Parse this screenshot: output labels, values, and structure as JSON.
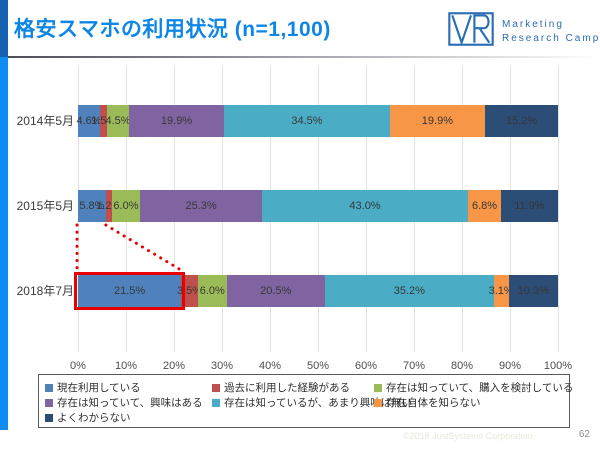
{
  "slide": {
    "title": "格安スマホの利用状況 (n=1,100)",
    "logo": {
      "brand_line1": "Marketing",
      "brand_line2": "Research Camp"
    },
    "footer": {
      "copyright": "©2018 JustSystems Corporation",
      "page_number": "62"
    }
  },
  "colors": {
    "title_accent": "#0e86e6",
    "edge_band_top": "#1563b0",
    "edge_band_bottom": "#0d8df2",
    "logo_blue": "#2a6db5",
    "highlight_red": "#e60000",
    "gridline": "#e2e2e2"
  },
  "chart_data": {
    "type": "bar",
    "subtype": "horizontal-stacked",
    "unit": "%",
    "categories": [
      "2014年5月",
      "2015年5月",
      "2018年7月"
    ],
    "series": [
      {
        "name": "現在利用している",
        "color": "#4f81bd",
        "values": [
          4.6,
          5.8,
          21.5
        ]
      },
      {
        "name": "過去に利用した経験がある",
        "color": "#c0504d",
        "values": [
          1.5,
          1.2,
          3.5
        ]
      },
      {
        "name": "存在は知っていて、購入を検討している",
        "color": "#9bbb59",
        "values": [
          4.5,
          6.0,
          6.0
        ]
      },
      {
        "name": "存在は知っていて、興味はある",
        "color": "#8064a2",
        "values": [
          19.9,
          25.3,
          20.5
        ]
      },
      {
        "name": "存在は知っているが、あまり興味は無い",
        "color": "#4bacc6",
        "values": [
          34.5,
          43.0,
          35.2
        ]
      },
      {
        "name": "存在自体を知らない",
        "color": "#f79646",
        "values": [
          19.9,
          6.8,
          3.1
        ]
      },
      {
        "name": "よくわからない",
        "color": "#2c4d75",
        "values": [
          15.2,
          11.9,
          10.3
        ]
      }
    ],
    "x_ticks": [
      "0%",
      "10%",
      "20%",
      "30%",
      "40%",
      "50%",
      "60%",
      "70%",
      "80%",
      "90%",
      "100%"
    ],
    "xlim": [
      0,
      100
    ],
    "grid": true,
    "legend_position": "bottom",
    "highlight": {
      "category": "2018年7月",
      "series": "現在利用している",
      "value": 21.5,
      "callout_from_category": "2015年5月",
      "style": "red-rectangle-with-dotted-callout-lines"
    }
  }
}
